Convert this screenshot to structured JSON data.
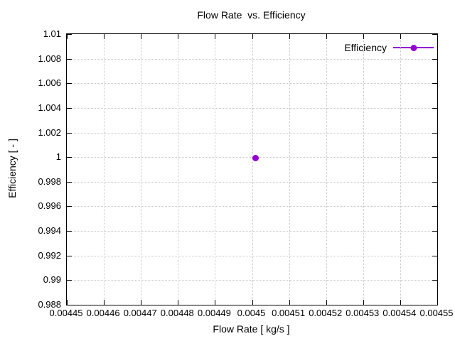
{
  "chart_data": {
    "type": "scatter",
    "title": "Flow Rate  vs. Efficiency",
    "xlabel": "Flow Rate [ kg/s ]",
    "ylabel": "Efficiency [ - ]",
    "xlim": [
      0.00445,
      0.00455
    ],
    "ylim": [
      0.988,
      1.01
    ],
    "x_ticks": [
      "0.00445",
      "0.00446",
      "0.00447",
      "0.00448",
      "0.00449",
      "0.0045",
      "0.00451",
      "0.00452",
      "0.00453",
      "0.00454",
      "0.00455"
    ],
    "y_ticks": [
      "0.988",
      "0.99",
      "0.992",
      "0.994",
      "0.996",
      "0.998",
      "1",
      "1.002",
      "1.004",
      "1.006",
      "1.008",
      "1.01"
    ],
    "grid": true,
    "legend_position": "top-right",
    "colors": {
      "frame": "#000000",
      "grid": "#c6c6c6",
      "background": "#ffffff"
    },
    "series": [
      {
        "name": "Efficiency",
        "color": "#9400d3",
        "marker": "filled-circle",
        "points": [
          {
            "x": 0.004501,
            "y": 0.9999
          }
        ]
      }
    ]
  }
}
